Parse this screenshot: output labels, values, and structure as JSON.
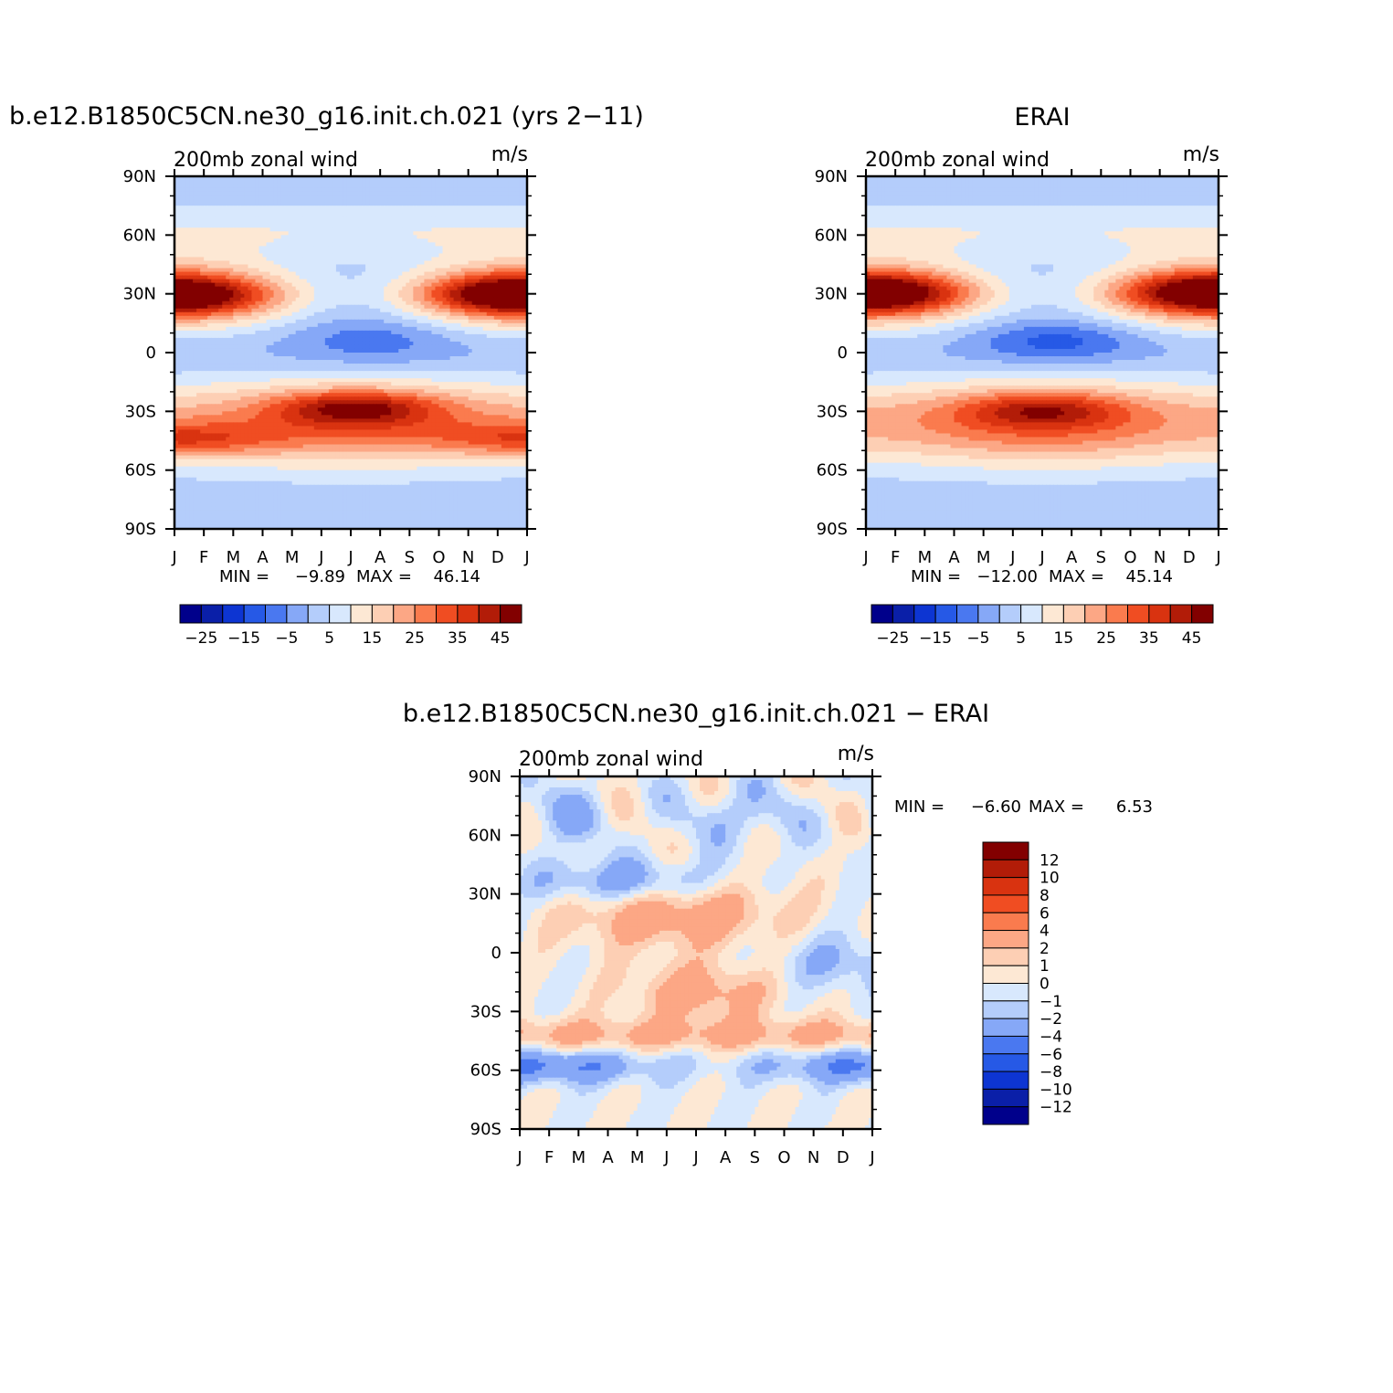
{
  "chart_data": [
    {
      "type": "heatmap",
      "title": "b.e12.B1850C5CN.ne30_g16.init.ch.021 (yrs 2−11)",
      "subtitle_left": "200mb zonal wind",
      "subtitle_right": "m/s",
      "x_tick_labels": [
        "J",
        "F",
        "M",
        "A",
        "M",
        "J",
        "J",
        "A",
        "S",
        "O",
        "N",
        "D",
        "J"
      ],
      "y_tick_labels": [
        "90N",
        "60N",
        "30N",
        "0",
        "30S",
        "60S",
        "90S"
      ],
      "y_range": [
        -90,
        90
      ],
      "stats": {
        "min_label": "MIN =",
        "min": "−9.89",
        "max_label": "MAX =",
        "max": "46.14"
      },
      "colorbar_labels": [
        "−25",
        "−15",
        "−5",
        "5",
        "15",
        "25",
        "35",
        "45"
      ],
      "features": [
        {
          "t": 0.5,
          "y": 29,
          "amp": 22,
          "st": 0.1,
          "sy": 7
        },
        {
          "t": 11.0,
          "y": 30,
          "amp": 18,
          "st": 0.12,
          "sy": 7
        },
        {
          "t": 6.2,
          "y": -28,
          "amp": 22,
          "st": 0.14,
          "sy": 6
        },
        {
          "t": 0.8,
          "y": -45,
          "amp": 10,
          "st": 0.12,
          "sy": 6
        },
        {
          "t": 11.5,
          "y": -44,
          "amp": 8,
          "st": 0.1,
          "sy": 6
        },
        {
          "t": 6.8,
          "y": 7,
          "amp": -8,
          "st": 0.14,
          "sy": 8
        }
      ]
    },
    {
      "type": "heatmap",
      "title": "ERAI",
      "subtitle_left": "200mb zonal wind",
      "subtitle_right": "m/s",
      "x_tick_labels": [
        "J",
        "F",
        "M",
        "A",
        "M",
        "J",
        "J",
        "A",
        "S",
        "O",
        "N",
        "D",
        "J"
      ],
      "y_tick_labels": [
        "90N",
        "60N",
        "30N",
        "0",
        "30S",
        "60S",
        "90S"
      ],
      "y_range": [
        -90,
        90
      ],
      "stats": {
        "min_label": "MIN =",
        "min": "−12.00",
        "max_label": "MAX =",
        "max": "45.14"
      },
      "colorbar_labels": [
        "−25",
        "−15",
        "−5",
        "5",
        "15",
        "25",
        "35",
        "45"
      ],
      "features": [
        {
          "t": 0.6,
          "y": 30,
          "amp": 22,
          "st": 0.1,
          "sy": 7
        },
        {
          "t": 11.3,
          "y": 31,
          "amp": 17,
          "st": 0.1,
          "sy": 7
        },
        {
          "t": 6.0,
          "y": -29,
          "amp": 18,
          "st": 0.15,
          "sy": 6
        },
        {
          "t": 6.5,
          "y": 6,
          "amp": -12,
          "st": 0.14,
          "sy": 7
        }
      ]
    },
    {
      "type": "heatmap",
      "title": "b.e12.B1850C5CN.ne30_g16.init.ch.021 − ERAI",
      "subtitle_left": "200mb zonal wind",
      "subtitle_right": "m/s",
      "x_tick_labels": [
        "J",
        "F",
        "M",
        "A",
        "M",
        "J",
        "J",
        "A",
        "S",
        "O",
        "N",
        "D",
        "J"
      ],
      "y_tick_labels": [
        "90N",
        "60N",
        "30N",
        "0",
        "30S",
        "60S",
        "90S"
      ],
      "y_range": [
        -90,
        90
      ],
      "stats": {
        "min_label": "MIN =",
        "min": "−6.60",
        "max_label": "MAX =",
        "max": "6.53"
      },
      "colorbar_labels": [
        "12",
        "10",
        "8",
        "6",
        "4",
        "2",
        "1",
        "0",
        "−1",
        "−2",
        "−4",
        "−6",
        "−8",
        "−10",
        "−12"
      ]
    }
  ],
  "colors": {
    "abs_levels": [
      "#00008b",
      "#0a1fa8",
      "#0d35d2",
      "#2659e6",
      "#4a78f0",
      "#86a8f7",
      "#b4cdfb",
      "#d8e8fd",
      "#fde8d4",
      "#fdcfb4",
      "#fca785",
      "#fa7b4e",
      "#f04d22",
      "#d93310",
      "#b21c08",
      "#820000"
    ],
    "diff_levels": [
      "#00008b",
      "#0a1fa8",
      "#0d35d2",
      "#2659e6",
      "#4a78f0",
      "#86a8f7",
      "#b4cdfb",
      "#d8e8fd",
      "#fde8d4",
      "#fdcfb4",
      "#fca785",
      "#fa7b4e",
      "#f04d22",
      "#d93310",
      "#b21c08",
      "#820000"
    ]
  }
}
